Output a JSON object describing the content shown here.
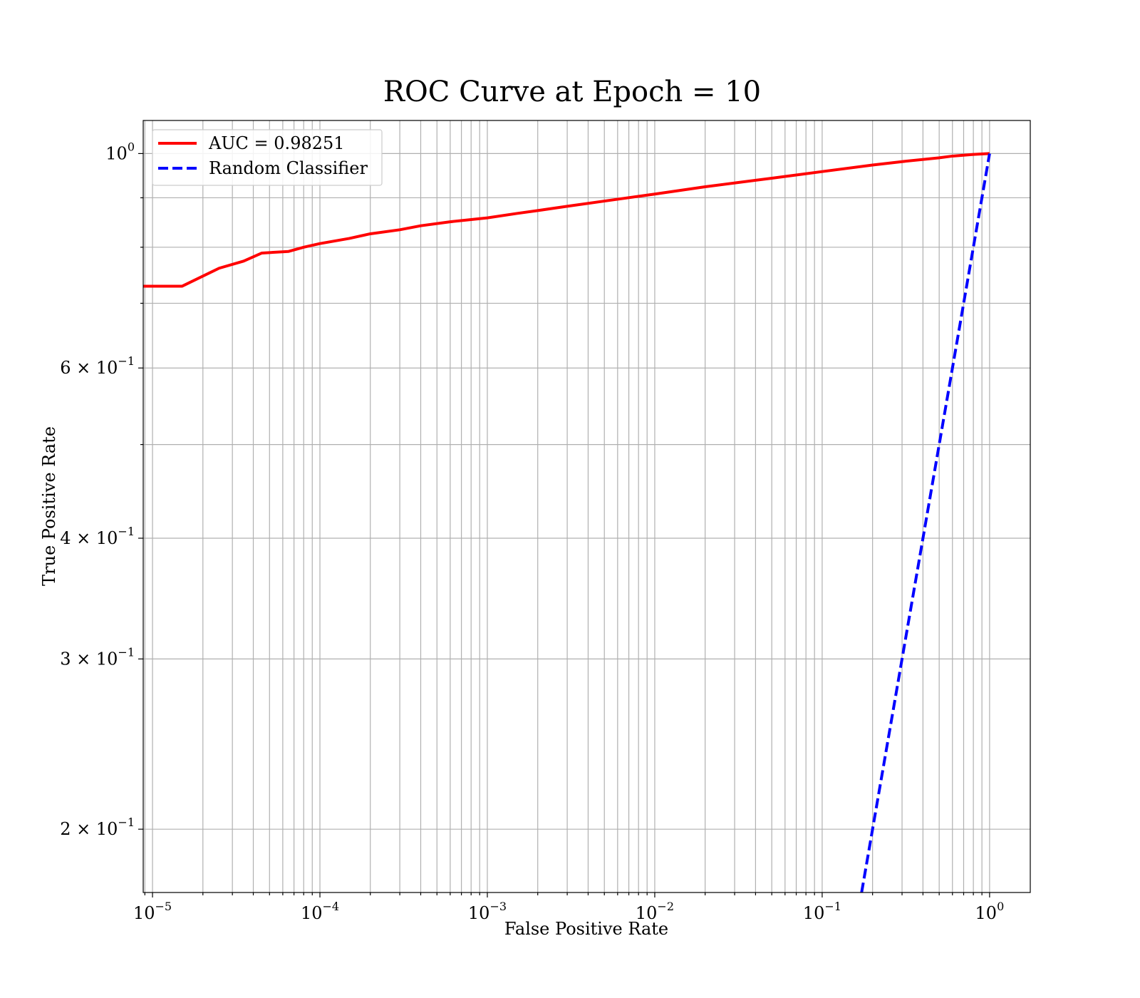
{
  "chart_data": {
    "type": "line",
    "title": "ROC Curve at Epoch = 10",
    "xlabel": "False Positive Rate",
    "ylabel": "True Positive Rate",
    "xscale": "log",
    "yscale": "log",
    "xlim": [
      8.8e-06,
      1.75
    ],
    "ylim": [
      0.172,
      1.082
    ],
    "grid": true,
    "grid_minor": true,
    "legend_position": "top-left",
    "x_ticks": [
      {
        "base": "10",
        "exp": "−5"
      },
      {
        "base": "10",
        "exp": "−4"
      },
      {
        "base": "10",
        "exp": "−3"
      },
      {
        "base": "10",
        "exp": "−2"
      },
      {
        "base": "10",
        "exp": "−1"
      },
      {
        "base": "10",
        "exp": "0"
      }
    ],
    "y_ticks": [
      {
        "label": "10",
        "exp": "0",
        "value": 1.0
      },
      {
        "label": "6 × 10",
        "exp": "−1",
        "value": 0.6
      },
      {
        "label": "4 × 10",
        "exp": "−1",
        "value": 0.4
      },
      {
        "label": "3 × 10",
        "exp": "−1",
        "value": 0.3
      },
      {
        "label": "2 × 10",
        "exp": "−1",
        "value": 0.2
      }
    ],
    "x_tick_values": [
      1e-05,
      0.0001,
      0.001,
      0.01,
      0.1,
      1
    ],
    "series": [
      {
        "name": "AUC = 0.98251",
        "color": "#ff0000",
        "style": "solid",
        "x": [
          8.8e-06,
          1.5e-05,
          2.5e-05,
          3.5e-05,
          4.5e-05,
          6.5e-05,
          8e-05,
          0.0001,
          0.00015,
          0.0002,
          0.0003,
          0.0004,
          0.0006,
          0.001,
          0.0015,
          0.002,
          0.003,
          0.005,
          0.01,
          0.02,
          0.05,
          0.1,
          0.2,
          0.3,
          0.5,
          0.6,
          0.8,
          1.0
        ],
        "y": [
          0.729,
          0.729,
          0.761,
          0.774,
          0.789,
          0.792,
          0.8,
          0.807,
          0.817,
          0.826,
          0.834,
          0.842,
          0.85,
          0.858,
          0.867,
          0.873,
          0.882,
          0.893,
          0.908,
          0.924,
          0.943,
          0.958,
          0.973,
          0.981,
          0.99,
          0.994,
          0.998,
          1.0
        ]
      },
      {
        "name": "Random Classifier",
        "color": "#0000ff",
        "style": "dashed",
        "x": [
          0.172,
          1.0
        ],
        "y": [
          0.172,
          1.0
        ]
      }
    ]
  }
}
